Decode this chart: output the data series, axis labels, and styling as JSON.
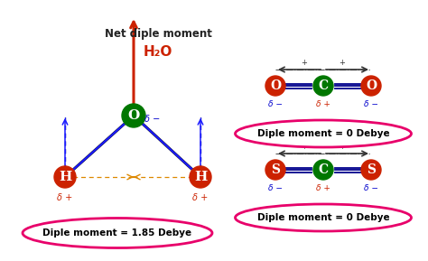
{
  "title": "Net diple moment",
  "title2": "H₂O",
  "delta_minus": "δ −",
  "delta_plus": "δ +",
  "dipole_h2o": "Diple moment = 1.85 Debye",
  "dipole_co2": "Diple moment = 0 Debye",
  "dipole_cs2": "Diple moment = 0 Debye",
  "color_red": "#cc2200",
  "color_orange": "#dd8800",
  "color_green": "#007700",
  "color_blue": "#0000cc",
  "color_black": "#111111",
  "color_pink": "#e8006a",
  "color_navy": "#000080",
  "color_darkblue": "#1a1aff",
  "bg": "#ffffff"
}
